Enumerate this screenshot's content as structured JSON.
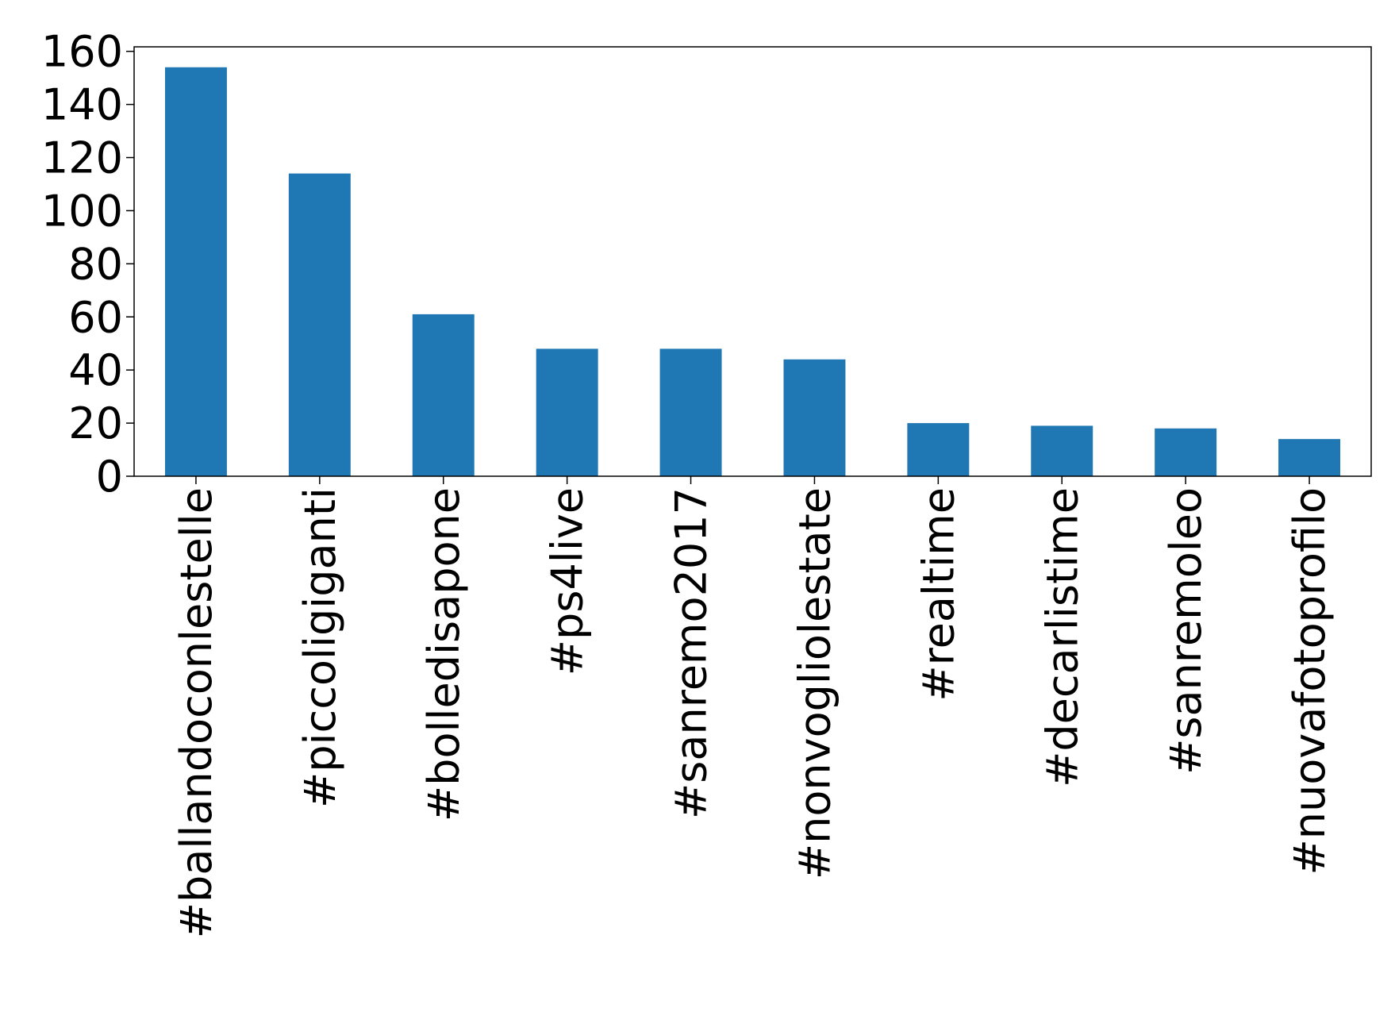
{
  "chart_data": {
    "type": "bar",
    "categories": [
      "#ballandoconlestelle",
      "#piccoligiganti",
      "#bolledisapone",
      "#ps4live",
      "#sanremo2017",
      "#nonvogliolestate",
      "#realtime",
      "#decarlistime",
      "#sanremoleo",
      "#nuovafotoprofilo"
    ],
    "values": [
      154,
      114,
      61,
      48,
      48,
      44,
      20,
      19,
      18,
      14
    ],
    "color": "#1f77b4",
    "ylim": [
      0,
      161.7
    ],
    "yticks": [
      0,
      20,
      40,
      60,
      80,
      100,
      120,
      140,
      160
    ],
    "grid": false
  }
}
